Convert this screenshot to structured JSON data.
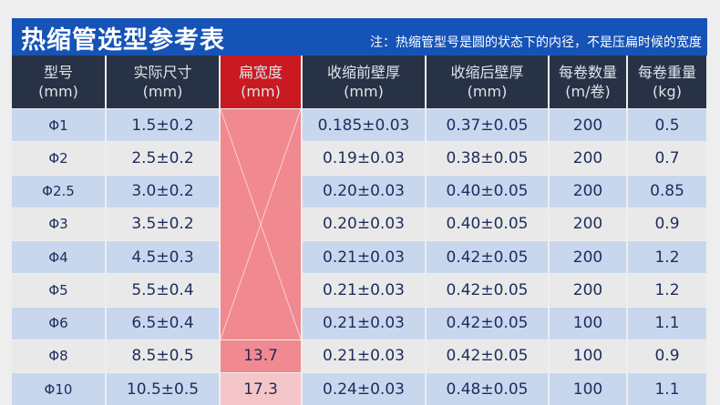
{
  "title": "热缩管选型参考表",
  "note": "注：热缩管型号是圆的状态下的内径，不是压扁时候的宽度",
  "headers": [
    {
      "l1": "型号",
      "l2": "(mm)"
    },
    {
      "l1": "实际尺寸",
      "l2": "(mm)"
    },
    {
      "l1": "扁宽度",
      "l2": "(mm)"
    },
    {
      "l1": "收缩前壁厚",
      "l2": "(mm)"
    },
    {
      "l1": "收缩后壁厚",
      "l2": "(mm)"
    },
    {
      "l1": "每卷数量",
      "l2": "(m/卷)"
    },
    {
      "l1": "每卷重量",
      "l2": "(kg)"
    }
  ],
  "rows": [
    [
      "Φ1",
      "1.5±0.2",
      "",
      "0.185±0.03",
      "0.37±0.05",
      "200",
      "0.5"
    ],
    [
      "Φ2",
      "2.5±0.2",
      "",
      "0.19±0.03",
      "0.38±0.05",
      "200",
      "0.7"
    ],
    [
      "Φ2.5",
      "3.0±0.2",
      "",
      "0.20±0.03",
      "0.40±0.05",
      "200",
      "0.85"
    ],
    [
      "Φ3",
      "3.5±0.2",
      "",
      "0.20±0.03",
      "0.40±0.05",
      "200",
      "0.9"
    ],
    [
      "Φ4",
      "4.5±0.3",
      "",
      "0.21±0.03",
      "0.42±0.05",
      "200",
      "1.2"
    ],
    [
      "Φ5",
      "5.5±0.4",
      "",
      "0.21±0.03",
      "0.42±0.05",
      "200",
      "1.2"
    ],
    [
      "Φ6",
      "6.5±0.4",
      "",
      "0.21±0.03",
      "0.42±0.05",
      "100",
      "1.1"
    ],
    [
      "Φ8",
      "8.5±0.5",
      "13.7",
      "0.21±0.03",
      "0.42±0.05",
      "100",
      "0.9"
    ],
    [
      "Φ10",
      "10.5±0.5",
      "17.3",
      "0.24±0.03",
      "0.48±0.05",
      "100",
      "1.1"
    ]
  ],
  "colors": {
    "title_bar": "#1553b7",
    "header": "#283246",
    "highlight_header": "#c91a22",
    "highlight_column": "#f08a90",
    "row_blue": "#c8d7ee",
    "row_gray": "#e9e9e9",
    "text": "#1e2c5c"
  }
}
